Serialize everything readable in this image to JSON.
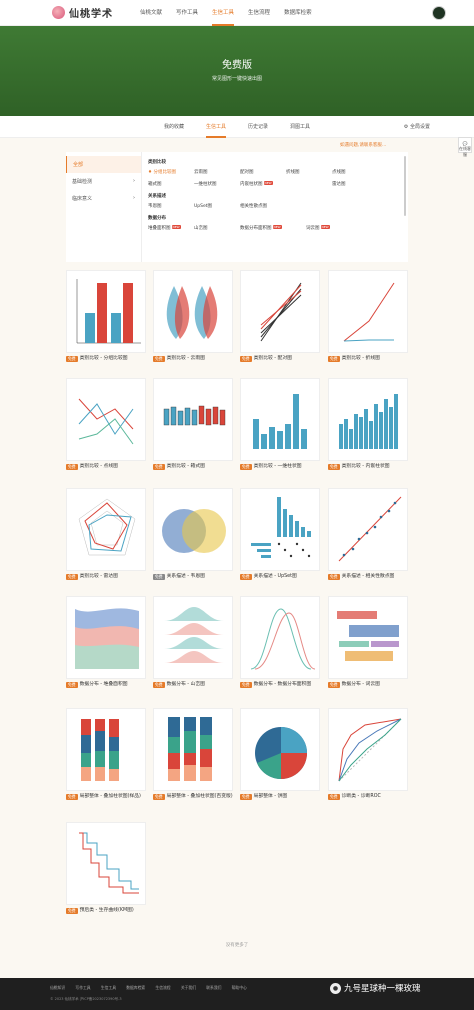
{
  "nav": {
    "logo": "仙桃学术",
    "items": [
      "仙桃文献",
      "写作工具",
      "生信工具",
      "生信流程",
      "数据库检索"
    ],
    "active": 2
  },
  "banner": {
    "title": "免费版",
    "subtitle": "常见图形一键快速出图"
  },
  "tabs": {
    "items": [
      "我的收藏",
      "生信工具",
      "历史记录",
      "洞图工具"
    ],
    "active": 1,
    "settings": "全局设置"
  },
  "side_widget": "在线客服",
  "tip": "如遇问题,请联系客服…",
  "filter": {
    "side": [
      "全部",
      "基础检测",
      "临床意义"
    ],
    "side_selected": 0,
    "sections": [
      {
        "title": "类别比较",
        "rows": [
          [
            {
              "label": "分组比较图",
              "badge": ""
            },
            {
              "label": "云雨图",
              "badge": ""
            },
            {
              "label": "配对图",
              "badge": ""
            },
            {
              "label": "折线图",
              "badge": ""
            },
            {
              "label": "点线图",
              "badge": ""
            }
          ],
          [
            {
              "label": "箱式图",
              "badge": ""
            },
            {
              "label": "一维柱状图",
              "badge": ""
            },
            {
              "label": "内嵌柱状图",
              "badge": "NEW"
            },
            {
              "label": "",
              "badge": ""
            },
            {
              "label": "雷达图",
              "badge": ""
            }
          ]
        ]
      },
      {
        "title": "关系描述",
        "rows": [
          [
            {
              "label": "韦恩图",
              "badge": ""
            },
            {
              "label": "UpSet图",
              "badge": ""
            },
            {
              "label": "相关性散点图",
              "badge": ""
            }
          ]
        ]
      },
      {
        "title": "数据分布",
        "rows": [
          [
            {
              "label": "堆叠面积图",
              "badge": "NEW"
            },
            {
              "label": "山峦图",
              "badge": ""
            },
            {
              "label": "数据分布面积图",
              "badge": "NEW"
            },
            {
              "label": "词云图",
              "badge": "NEW"
            }
          ]
        ]
      }
    ]
  },
  "cards": [
    {
      "btn": "免费",
      "caption": "类别比较 - 分组比较图"
    },
    {
      "btn": "免费",
      "caption": "类别比较 - 云雨图"
    },
    {
      "btn": "免费",
      "caption": "类别比较 - 配对图"
    },
    {
      "btn": "免费",
      "caption": "类别比较 - 折线图"
    },
    {
      "btn": "免费",
      "caption": "类别比较 - 点线图"
    },
    {
      "btn": "免费",
      "caption": "类别比较 - 箱式图"
    },
    {
      "btn": "免费",
      "caption": "类别比较 - 一维柱状图"
    },
    {
      "btn": "免费",
      "caption": "类别比较 - 内嵌柱状图"
    },
    {
      "btn": "免费",
      "caption": "类别比较 - 雷达图"
    },
    {
      "btn": "免费",
      "caption": "关系描述 - 韦恩图"
    },
    {
      "btn": "免费",
      "caption": "关系描述 - UpSet图"
    },
    {
      "btn": "免费",
      "caption": "关系描述 - 相关性散点图"
    },
    {
      "btn": "免费",
      "caption": "数据分布 - 堆叠面积图"
    },
    {
      "btn": "免费",
      "caption": "数据分布 - 山峦图"
    },
    {
      "btn": "免费",
      "caption": "数据分布 - 数据分布面积图"
    },
    {
      "btn": "免费",
      "caption": "数据分布 - 词云图"
    },
    {
      "btn": "免费",
      "caption": "局部整体 - 叠加柱状图(样品)"
    },
    {
      "btn": "免费",
      "caption": "局部整体 - 叠加柱状图(百变版)"
    },
    {
      "btn": "免费",
      "caption": "局部整体 - 饼图"
    },
    {
      "btn": "免费",
      "caption": "诊断类 - 诊断ROC"
    },
    {
      "btn": "免费",
      "caption": "预后类 - 生存曲线(KM图)"
    }
  ],
  "more": "没有更多了",
  "footer": {
    "links": [
      "仙桃知识",
      "写作工具",
      "生信工具",
      "数据库检索",
      "生信流程",
      "关于我们",
      "联系我们",
      "帮助中心"
    ],
    "copyright": "© 2023 仙桃学术     沪ICP备2023072390号-3"
  },
  "watermark": "九号星球种一棵玫瑰",
  "colors": {
    "accent": "#e57b2a",
    "banner": "#3a7330",
    "red": "#d9453a",
    "blue": "#4aa3c3"
  }
}
